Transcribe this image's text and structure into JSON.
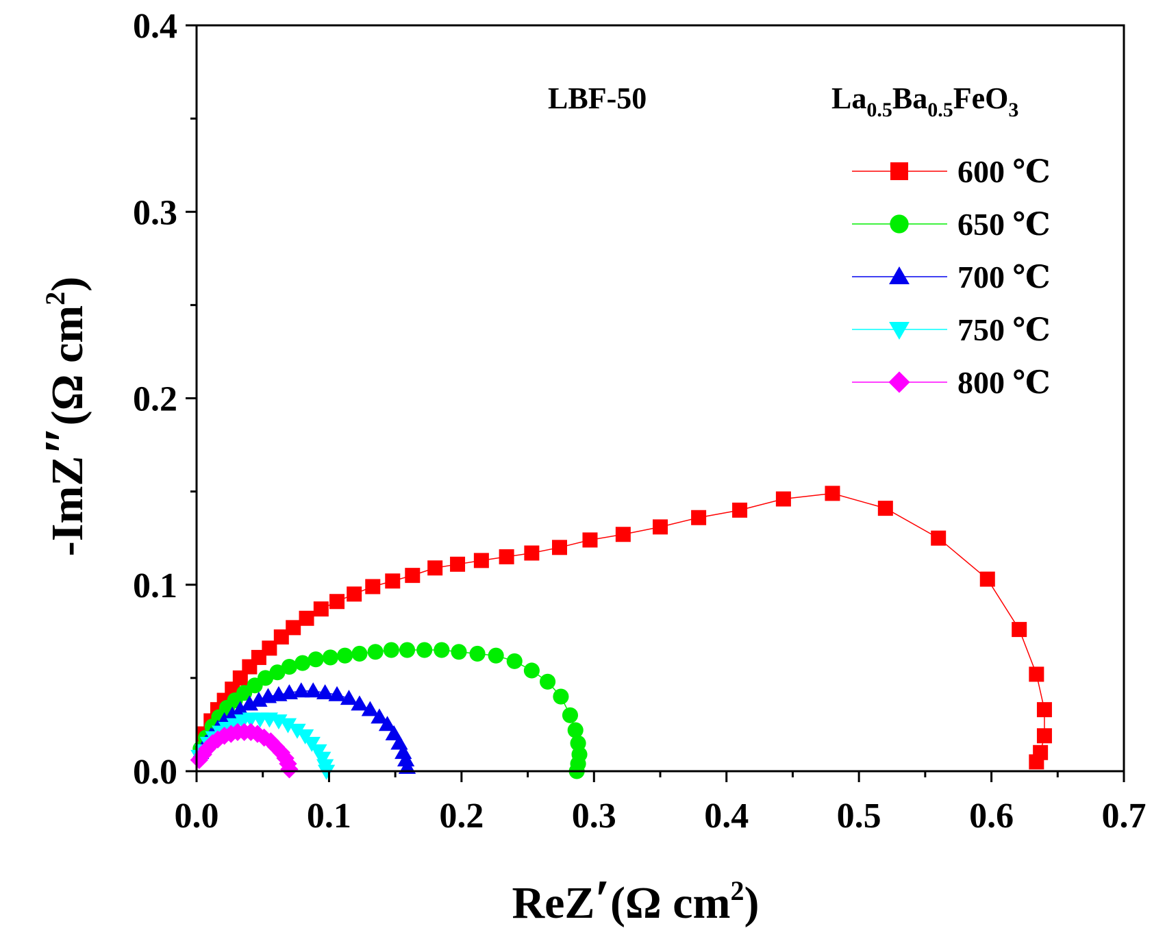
{
  "chart_data": {
    "type": "scatter",
    "title": "",
    "xlabel": {
      "main": "ReZ",
      "prime": "′",
      "unit_open": "(Ω cm",
      "unit_sup": "2",
      "unit_close": ")"
    },
    "ylabel": {
      "main": "-ImZ",
      "prime": "″",
      "unit_open": "(Ω cm",
      "unit_sup": "2",
      "unit_close": ")"
    },
    "xlim": [
      0,
      0.7
    ],
    "ylim": [
      0,
      0.4
    ],
    "xticks": [
      "0.0",
      "0.1",
      "0.2",
      "0.3",
      "0.4",
      "0.5",
      "0.6",
      "0.7"
    ],
    "yticks": [
      "0.0",
      "0.1",
      "0.2",
      "0.3",
      "0.4"
    ],
    "grid": false,
    "annotations": {
      "sample": "LBF-50",
      "formula": {
        "el1": "La",
        "sub1": "0.5",
        "el2": "Ba",
        "sub2": "0.5",
        "el3": "FeO",
        "sub3": "3"
      }
    },
    "legend_position": "top-right",
    "series": [
      {
        "name": "600 ℃",
        "color": "#ff0000",
        "marker": "square",
        "points": [
          [
            0.006,
            0.02
          ],
          [
            0.011,
            0.027
          ],
          [
            0.016,
            0.033
          ],
          [
            0.021,
            0.038
          ],
          [
            0.027,
            0.044
          ],
          [
            0.033,
            0.05
          ],
          [
            0.04,
            0.056
          ],
          [
            0.047,
            0.061
          ],
          [
            0.055,
            0.066
          ],
          [
            0.064,
            0.072
          ],
          [
            0.073,
            0.077
          ],
          [
            0.083,
            0.082
          ],
          [
            0.094,
            0.087
          ],
          [
            0.106,
            0.091
          ],
          [
            0.119,
            0.095
          ],
          [
            0.133,
            0.099
          ],
          [
            0.148,
            0.102
          ],
          [
            0.163,
            0.105
          ],
          [
            0.18,
            0.109
          ],
          [
            0.197,
            0.111
          ],
          [
            0.215,
            0.113
          ],
          [
            0.234,
            0.115
          ],
          [
            0.253,
            0.117
          ],
          [
            0.274,
            0.12
          ],
          [
            0.297,
            0.124
          ],
          [
            0.322,
            0.127
          ],
          [
            0.35,
            0.131
          ],
          [
            0.379,
            0.136
          ],
          [
            0.41,
            0.14
          ],
          [
            0.443,
            0.146
          ],
          [
            0.48,
            0.149
          ],
          [
            0.52,
            0.141
          ],
          [
            0.56,
            0.125
          ],
          [
            0.597,
            0.103
          ],
          [
            0.621,
            0.076
          ],
          [
            0.634,
            0.052
          ],
          [
            0.64,
            0.033
          ],
          [
            0.64,
            0.019
          ],
          [
            0.637,
            0.01
          ],
          [
            0.634,
            0.005
          ]
        ]
      },
      {
        "name": "650 ℃",
        "color": "#00ee00",
        "marker": "circle",
        "points": [
          [
            0.003,
            0.012
          ],
          [
            0.007,
            0.018
          ],
          [
            0.012,
            0.024
          ],
          [
            0.017,
            0.029
          ],
          [
            0.023,
            0.034
          ],
          [
            0.029,
            0.038
          ],
          [
            0.036,
            0.042
          ],
          [
            0.044,
            0.046
          ],
          [
            0.052,
            0.05
          ],
          [
            0.061,
            0.053
          ],
          [
            0.07,
            0.056
          ],
          [
            0.08,
            0.058
          ],
          [
            0.09,
            0.06
          ],
          [
            0.101,
            0.061
          ],
          [
            0.112,
            0.062
          ],
          [
            0.123,
            0.063
          ],
          [
            0.135,
            0.064
          ],
          [
            0.147,
            0.065
          ],
          [
            0.159,
            0.065
          ],
          [
            0.172,
            0.065
          ],
          [
            0.185,
            0.065
          ],
          [
            0.198,
            0.064
          ],
          [
            0.212,
            0.063
          ],
          [
            0.226,
            0.062
          ],
          [
            0.24,
            0.059
          ],
          [
            0.253,
            0.054
          ],
          [
            0.265,
            0.048
          ],
          [
            0.275,
            0.04
          ],
          [
            0.282,
            0.03
          ],
          [
            0.286,
            0.022
          ],
          [
            0.288,
            0.015
          ],
          [
            0.289,
            0.009
          ],
          [
            0.288,
            0.004
          ],
          [
            0.287,
            0.0
          ]
        ]
      },
      {
        "name": "700 ℃",
        "color": "#0000ee",
        "marker": "triangle-up",
        "points": [
          [
            0.003,
            0.01
          ],
          [
            0.007,
            0.015
          ],
          [
            0.011,
            0.019
          ],
          [
            0.016,
            0.023
          ],
          [
            0.021,
            0.027
          ],
          [
            0.027,
            0.03
          ],
          [
            0.033,
            0.033
          ],
          [
            0.04,
            0.036
          ],
          [
            0.047,
            0.038
          ],
          [
            0.054,
            0.04
          ],
          [
            0.062,
            0.041
          ],
          [
            0.07,
            0.042
          ],
          [
            0.079,
            0.043
          ],
          [
            0.088,
            0.043
          ],
          [
            0.097,
            0.042
          ],
          [
            0.106,
            0.041
          ],
          [
            0.115,
            0.039
          ],
          [
            0.123,
            0.036
          ],
          [
            0.131,
            0.033
          ],
          [
            0.138,
            0.029
          ],
          [
            0.144,
            0.025
          ],
          [
            0.149,
            0.02
          ],
          [
            0.153,
            0.015
          ],
          [
            0.156,
            0.01
          ],
          [
            0.158,
            0.006
          ],
          [
            0.159,
            0.002
          ]
        ]
      },
      {
        "name": "750 ℃",
        "color": "#00ffff",
        "marker": "triangle-down",
        "points": [
          [
            0.002,
            0.008
          ],
          [
            0.005,
            0.011
          ],
          [
            0.009,
            0.015
          ],
          [
            0.013,
            0.018
          ],
          [
            0.018,
            0.021
          ],
          [
            0.023,
            0.023
          ],
          [
            0.029,
            0.025
          ],
          [
            0.035,
            0.027
          ],
          [
            0.041,
            0.028
          ],
          [
            0.048,
            0.028
          ],
          [
            0.055,
            0.028
          ],
          [
            0.062,
            0.027
          ],
          [
            0.069,
            0.025
          ],
          [
            0.076,
            0.022
          ],
          [
            0.082,
            0.019
          ],
          [
            0.087,
            0.015
          ],
          [
            0.092,
            0.011
          ],
          [
            0.095,
            0.007
          ],
          [
            0.097,
            0.003
          ],
          [
            0.098,
            0.0
          ]
        ]
      },
      {
        "name": "800 ℃",
        "color": "#ff00ff",
        "marker": "diamond",
        "points": [
          [
            0.002,
            0.006
          ],
          [
            0.005,
            0.009
          ],
          [
            0.008,
            0.012
          ],
          [
            0.012,
            0.015
          ],
          [
            0.016,
            0.017
          ],
          [
            0.021,
            0.019
          ],
          [
            0.026,
            0.02
          ],
          [
            0.031,
            0.021
          ],
          [
            0.036,
            0.021
          ],
          [
            0.041,
            0.021
          ],
          [
            0.046,
            0.02
          ],
          [
            0.051,
            0.018
          ],
          [
            0.056,
            0.016
          ],
          [
            0.06,
            0.013
          ],
          [
            0.064,
            0.01
          ],
          [
            0.067,
            0.007
          ],
          [
            0.069,
            0.004
          ],
          [
            0.07,
            0.001
          ]
        ]
      }
    ]
  }
}
